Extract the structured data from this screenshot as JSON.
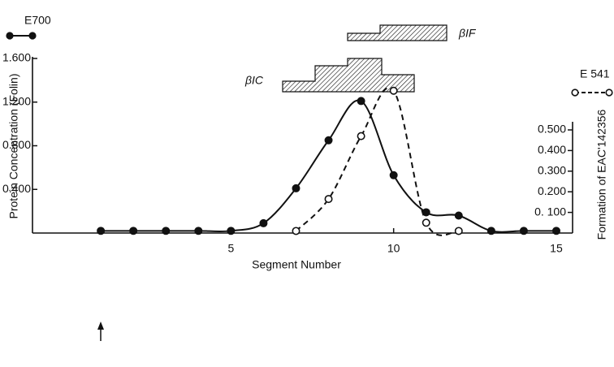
{
  "chart_data": {
    "type": "line",
    "x_label": "Segment Number",
    "y_label": "Protein Concentration (Folin)",
    "y2_label": "Formation of EAC'142356",
    "annotations": [
      "βIF",
      "βIC"
    ],
    "x": [
      1,
      2,
      3,
      4,
      5,
      6,
      7,
      8,
      9,
      10,
      11,
      12,
      13,
      14,
      15
    ],
    "xlim": [
      -1.1,
      15.5
    ],
    "xticks": [
      5,
      10,
      15
    ],
    "ylim": [
      0,
      1.6
    ],
    "yticks": [
      {
        "value": 0.4,
        "label": "0.400"
      },
      {
        "value": 0.8,
        "label": "0.800"
      },
      {
        "value": 1.2,
        "label": "1.200"
      },
      {
        "value": 1.6,
        "label": "1.600"
      }
    ],
    "y2lim": [
      0,
      0.5
    ],
    "y2ticks": [
      {
        "value": 0.1,
        "label": "0. 100"
      },
      {
        "value": 0.2,
        "label": "0.200"
      },
      {
        "value": 0.3,
        "label": "0.300"
      },
      {
        "value": 0.4,
        "label": "0.400"
      },
      {
        "value": 0.5,
        "label": "0.500"
      }
    ],
    "series": [
      {
        "name": "E700",
        "color": "#111111",
        "marker": "filled",
        "dash": false,
        "values": [
          0.02,
          0.02,
          0.02,
          0.02,
          0.02,
          0.09,
          0.41,
          0.85,
          1.21,
          0.53,
          0.19,
          0.16,
          0.02,
          0.02,
          0.02
        ]
      },
      {
        "name": "E 541",
        "color": "#111111",
        "marker": "open",
        "dash": true,
        "axis": "y2",
        "values": [
          null,
          null,
          null,
          null,
          null,
          null,
          0.01,
          0.165,
          0.47,
          0.69,
          0.05,
          0.01,
          null,
          null,
          null
        ]
      }
    ]
  }
}
